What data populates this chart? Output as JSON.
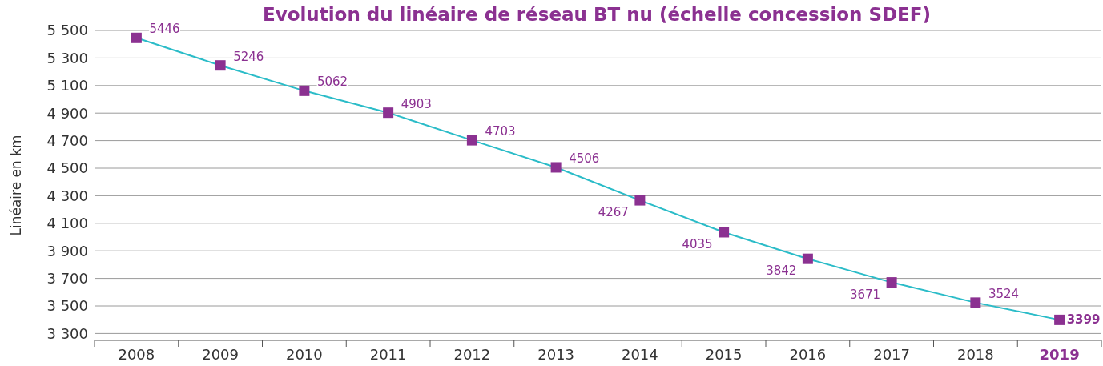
{
  "chart_data": {
    "type": "line",
    "title": "Evolution du linéaire de réseau BT nu (échelle concession SDEF)",
    "ylabel": "Linéaire en km",
    "categories": [
      "2008",
      "2009",
      "2010",
      "2011",
      "2012",
      "2013",
      "2014",
      "2015",
      "2016",
      "2017",
      "2018",
      "2019"
    ],
    "series": [
      {
        "color": "#2bbcc8",
        "values": [
          5446,
          5246,
          5062,
          4903,
          4703,
          4506,
          4267,
          4035,
          3842,
          3671,
          3524,
          3399
        ]
      }
    ],
    "marker": "square",
    "data_labels": true,
    "grid": "y",
    "line_style": "solid",
    "ylim": [
      3250,
      5500
    ],
    "yticks": [
      {
        "value": 3300,
        "label": "3 300"
      },
      {
        "value": 3500,
        "label": "3 500"
      },
      {
        "value": 3700,
        "label": "3 700"
      },
      {
        "value": 3900,
        "label": "3 900"
      },
      {
        "value": 4100,
        "label": "4 100"
      },
      {
        "value": 4300,
        "label": "4 300"
      },
      {
        "value": 4500,
        "label": "4 500"
      },
      {
        "value": 4700,
        "label": "4 700"
      },
      {
        "value": 4900,
        "label": "4 900"
      },
      {
        "value": 5100,
        "label": "5 100"
      },
      {
        "value": 5300,
        "label": "5 300"
      },
      {
        "value": 5500,
        "label": "5 500"
      }
    ]
  }
}
